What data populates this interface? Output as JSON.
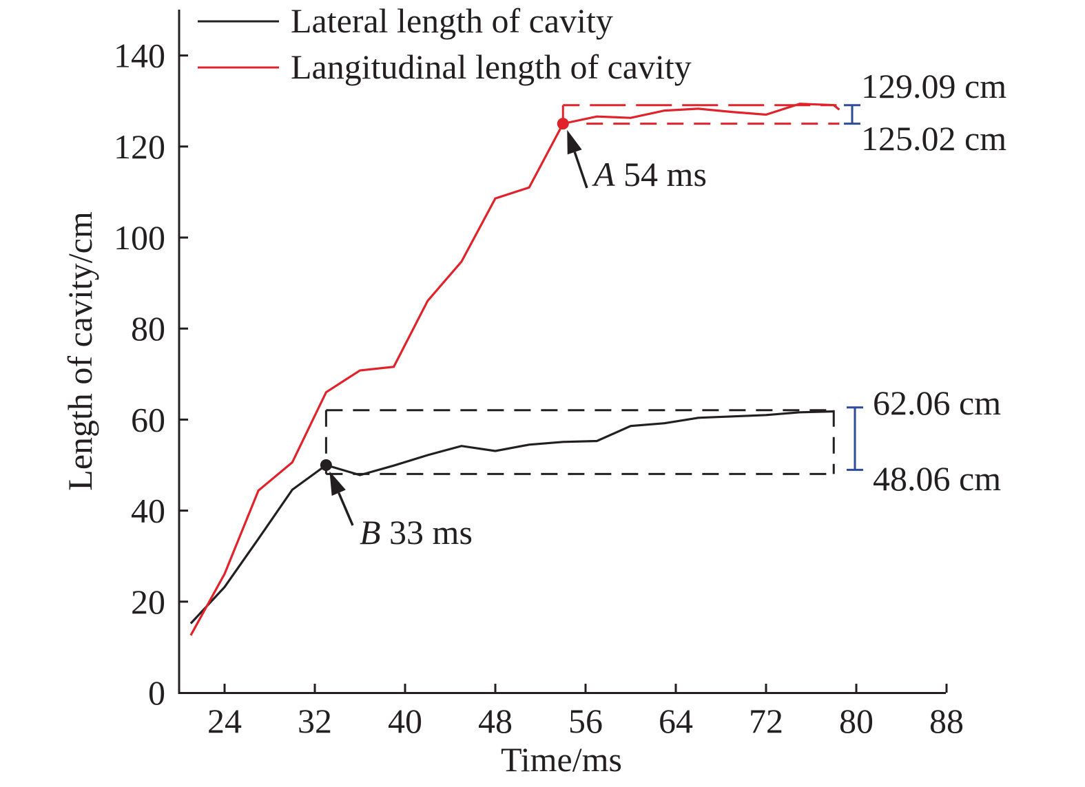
{
  "chart_data": {
    "type": "line",
    "title": "",
    "xlabel": "Time/ms",
    "ylabel": "Length of cavity/cm",
    "xlim": [
      20,
      88
    ],
    "ylim": [
      0,
      150
    ],
    "xticks": [
      24,
      32,
      40,
      48,
      56,
      64,
      72,
      80,
      88
    ],
    "yticks": [
      0,
      20,
      40,
      60,
      80,
      100,
      120,
      140
    ],
    "grid": false,
    "legend": {
      "placement": "top-left",
      "entries": [
        "Lateral length of cavity",
        "Langitudinal length of cavity"
      ]
    },
    "series": [
      {
        "name": "Lateral length of cavity",
        "color": "#231f20",
        "x": [
          21,
          24,
          27,
          30,
          33,
          36,
          39,
          42,
          45,
          48,
          51,
          54,
          57,
          60,
          63,
          66,
          69,
          72,
          75,
          78
        ],
        "y": [
          15.2,
          23.2,
          33.8,
          44.6,
          50.0,
          47.8,
          49.9,
          52.2,
          54.2,
          53.1,
          54.5,
          55.1,
          55.3,
          58.6,
          59.2,
          60.4,
          60.7,
          61.0,
          61.6,
          61.8
        ]
      },
      {
        "name": "Langitudinal length of cavity",
        "color": "#e0232b",
        "x": [
          21,
          24,
          27,
          30,
          33,
          36,
          39,
          42,
          45,
          48,
          51,
          54,
          57,
          60,
          63,
          66,
          69,
          72,
          75,
          78,
          78.5
        ],
        "y": [
          12.6,
          26.1,
          44.4,
          50.6,
          66.0,
          70.8,
          71.6,
          86.1,
          94.7,
          108.6,
          111.0,
          125.02,
          126.6,
          126.3,
          127.9,
          128.3,
          127.6,
          127.0,
          129.4,
          129.09,
          128.1
        ]
      }
    ],
    "annotations": [
      {
        "label_letter": "A",
        "label_rest": " 54 ms",
        "x": 54,
        "y": 125.02,
        "series": "Langitudinal length of cavity",
        "color": "#e0232b"
      },
      {
        "label_letter": "B",
        "label_rest": " 33 ms",
        "x": 33,
        "y": 50.0,
        "series": "Lateral length of cavity",
        "color": "#231f20"
      }
    ],
    "ranges": [
      {
        "x_start": 54,
        "x_end": 78.5,
        "upper": 129.09,
        "lower": 125.02,
        "upper_label": "129.09 cm",
        "lower_label": "125.02 cm",
        "box_color": "#e0232b",
        "bar_color": "#2e4a9a"
      },
      {
        "x_start": 33,
        "x_end": 78,
        "upper": 62.06,
        "lower": 48.06,
        "upper_label": "62.06 cm",
        "lower_label": "48.06 cm",
        "box_color": "#231f20",
        "bar_color": "#2e4a9a"
      }
    ]
  }
}
